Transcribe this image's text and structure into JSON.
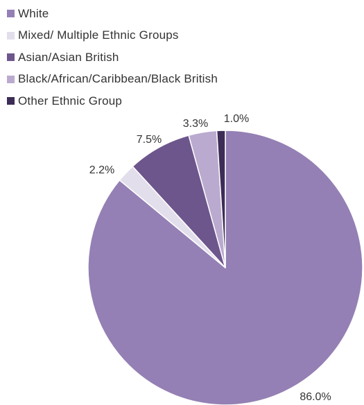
{
  "chart_data": {
    "type": "pie",
    "legend_position": "top-left",
    "start_angle_deg": 0,
    "direction": "clockwise",
    "slices": [
      {
        "label": "White",
        "value": 86.0,
        "value_label": "86.0%",
        "color": "#9480b4"
      },
      {
        "label": "Mixed/ Multiple Ethnic Groups",
        "value": 2.2,
        "value_label": "2.2%",
        "color": "#e3deec"
      },
      {
        "label": "Asian/Asian British",
        "value": 7.5,
        "value_label": "7.5%",
        "color": "#6d568c"
      },
      {
        "label": "Black/African/Caribbean/Black British",
        "value": 3.3,
        "value_label": "3.3%",
        "color": "#baaacf"
      },
      {
        "label": "Other Ethnic Group",
        "value": 1.0,
        "value_label": "1.0%",
        "color": "#3c2d57"
      }
    ]
  }
}
